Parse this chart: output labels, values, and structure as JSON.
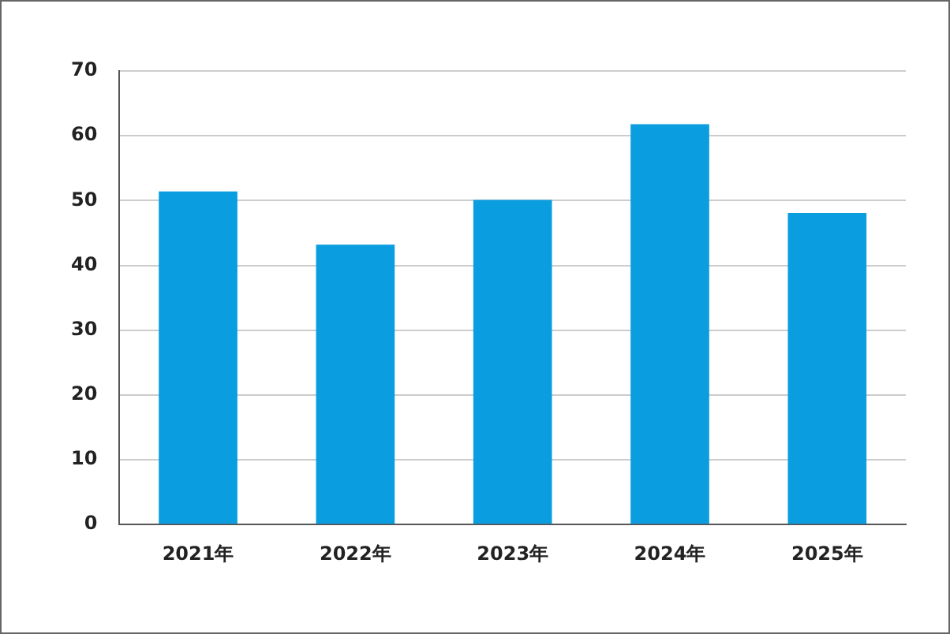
{
  "chart_data": {
    "type": "bar",
    "categories": [
      "2021年",
      "2022年",
      "2023年",
      "2024年",
      "2025年"
    ],
    "values": [
      51.4,
      43.2,
      50.1,
      61.8,
      48.1
    ],
    "color": "#0a9ee0",
    "ylim": [
      0,
      70
    ],
    "yticks": [
      0,
      10,
      20,
      30,
      40,
      50,
      60,
      70
    ],
    "grid": "y",
    "legend": false
  }
}
